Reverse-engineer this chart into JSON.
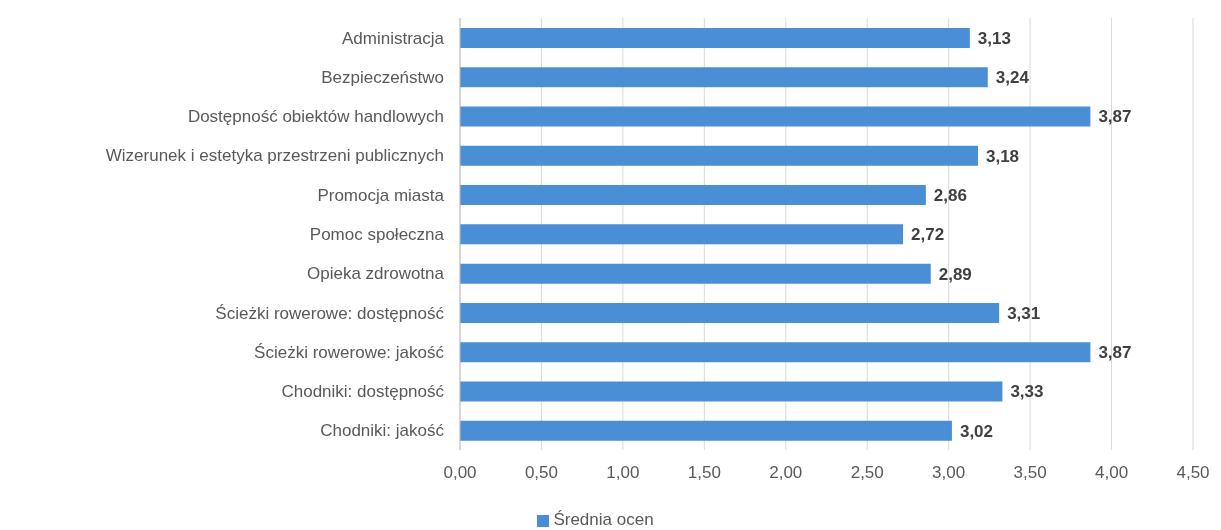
{
  "chart_data": {
    "type": "bar",
    "orientation": "horizontal",
    "categories": [
      "Administracja",
      "Bezpieczeństwo",
      "Dostępność obiektów handlowych",
      "Wizerunek i estetyka przestrzeni publicznych",
      "Promocja miasta",
      "Pomoc społeczna",
      "Opieka zdrowotna",
      "Ścieżki rowerowe: dostępność",
      "Ścieżki rowerowe: jakość",
      "Chodniki: dostępność",
      "Chodniki: jakość"
    ],
    "series": [
      {
        "name": "Średnia ocen",
        "color": "#4a8fd6",
        "values": [
          3.13,
          3.24,
          3.87,
          3.18,
          2.86,
          2.72,
          2.89,
          3.31,
          3.87,
          3.33,
          3.02
        ],
        "value_labels": [
          "3,13",
          "3,24",
          "3,87",
          "3,18",
          "2,86",
          "2,72",
          "2,89",
          "3,31",
          "3,87",
          "3,33",
          "3,02"
        ]
      }
    ],
    "xlim": [
      0,
      4.5
    ],
    "xticks": [
      {
        "value": 0,
        "label": "0,00"
      },
      {
        "value": 0.5,
        "label": "0,50"
      },
      {
        "value": 1,
        "label": "1,00"
      },
      {
        "value": 1.5,
        "label": "1,50"
      },
      {
        "value": 2,
        "label": "2,00"
      },
      {
        "value": 2.5,
        "label": "2,50"
      },
      {
        "value": 3,
        "label": "3,00"
      },
      {
        "value": 3.5,
        "label": "3,50"
      },
      {
        "value": 4,
        "label": "4,00"
      },
      {
        "value": 4.5,
        "label": "4,50"
      }
    ],
    "grid": "x",
    "legend": "bottom"
  }
}
